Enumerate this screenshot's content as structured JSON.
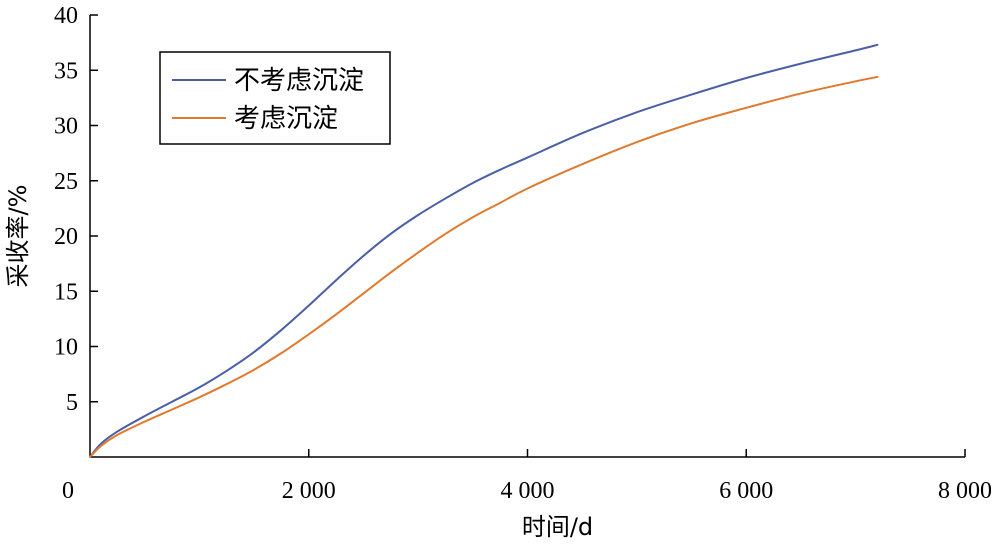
{
  "chart_data": {
    "type": "line",
    "title": "",
    "xlabel": "时间/d",
    "ylabel": "采收率/%",
    "xlim": [
      0,
      8000
    ],
    "ylim": [
      0,
      40
    ],
    "x_ticks": [
      0,
      2000,
      4000,
      6000,
      8000
    ],
    "x_tick_labels": [
      "0",
      "2 000",
      "4 000",
      "6 000",
      "8 000"
    ],
    "y_ticks": [
      5,
      10,
      15,
      20,
      25,
      30,
      35,
      40
    ],
    "y_tick_labels": [
      "5",
      "10",
      "15",
      "20",
      "25",
      "30",
      "35",
      "40"
    ],
    "grid": false,
    "legend_position": "top-left",
    "series": [
      {
        "name": "不考虑沉淀",
        "color": "#4a5fa8",
        "x": [
          0,
          100,
          250,
          500,
          750,
          1000,
          1250,
          1500,
          1750,
          2000,
          2250,
          2500,
          2750,
          3000,
          3250,
          3500,
          3750,
          4000,
          4500,
          5000,
          5500,
          6000,
          6500,
          7000,
          7200
        ],
        "y": [
          0,
          1.2,
          2.3,
          3.7,
          5.0,
          6.3,
          7.8,
          9.5,
          11.5,
          13.7,
          16.0,
          18.2,
          20.2,
          21.9,
          23.4,
          24.8,
          26.0,
          27.1,
          29.3,
          31.2,
          32.8,
          34.3,
          35.6,
          36.8,
          37.3
        ]
      },
      {
        "name": "考虑沉淀",
        "color": "#e07a2e",
        "x": [
          0,
          100,
          250,
          500,
          750,
          1000,
          1250,
          1500,
          1750,
          2000,
          2250,
          2500,
          2750,
          3000,
          3250,
          3500,
          3750,
          4000,
          4500,
          5000,
          5500,
          6000,
          6500,
          7000,
          7200
        ],
        "y": [
          0,
          1.0,
          2.0,
          3.2,
          4.3,
          5.4,
          6.6,
          7.9,
          9.4,
          11.1,
          12.9,
          14.8,
          16.7,
          18.5,
          20.2,
          21.7,
          23.0,
          24.3,
          26.5,
          28.5,
          30.2,
          31.6,
          32.9,
          34.0,
          34.4
        ]
      }
    ]
  }
}
